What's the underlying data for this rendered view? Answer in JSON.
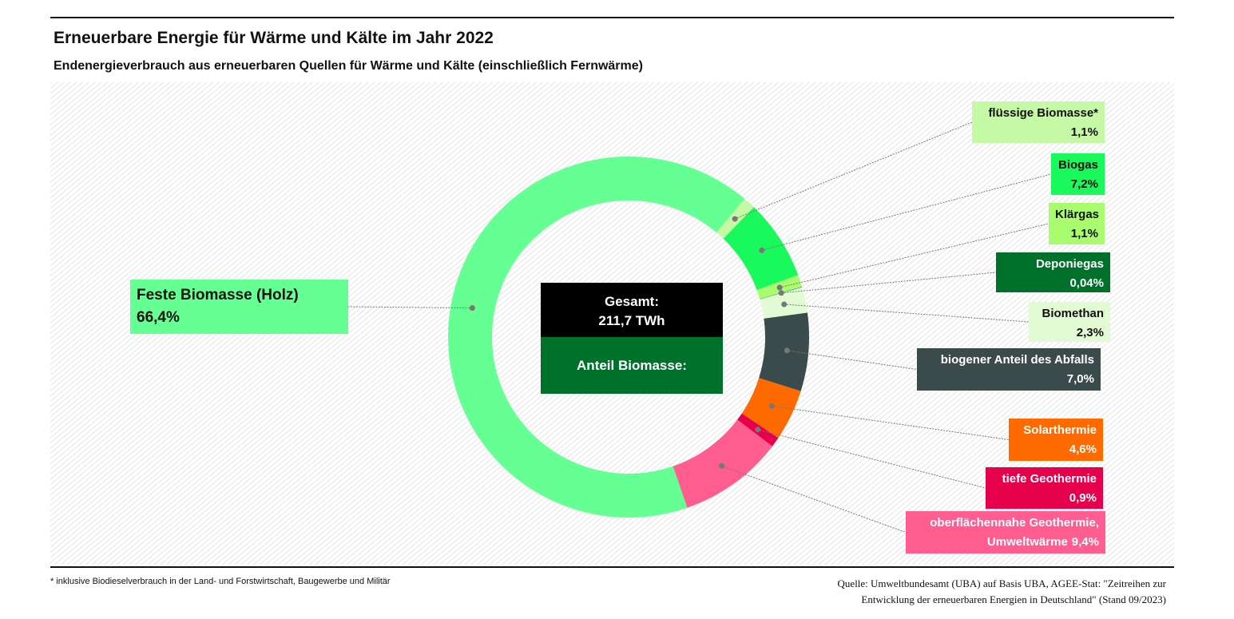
{
  "chart_data": {
    "type": "donut",
    "title": "Erneuerbare Energie für Wärme und Kälte im Jahr 2022",
    "subtitle": "Endenergieverbrauch aus erneuerbaren Quellen für Wärme und Kälte (einschließlich Fernwärme)",
    "categories": [
      "flüssige Biomasse*",
      "Biogas",
      "Klärgas",
      "Deponiegas",
      "Biomethan",
      "biogener Anteil des Abfalls",
      "Solarthermie",
      "tiefe Geothermie",
      "oberflächennahe Geothermie, Umweltwärme",
      "Feste Biomasse (Holz)"
    ],
    "values": [
      1.1,
      7.2,
      1.1,
      0.04,
      2.3,
      7.0,
      4.6,
      0.9,
      9.4,
      66.4
    ],
    "value_labels": [
      "1,1%",
      "7,2%",
      "1,1%",
      "0,04%",
      "2,3%",
      "7,0%",
      "4,6%",
      "0,9%",
      "9,4%",
      "66,4%"
    ],
    "colors": [
      "#c6f9a5",
      "#19f95c",
      "#a8fc6e",
      "#00712a",
      "#e2fbd4",
      "#3b4a4a",
      "#ff6a00",
      "#e6004c",
      "#ff5c90",
      "#66ff94"
    ],
    "center_labels": [
      "Gesamt:",
      "211,7 TWh",
      "Anteil Biomasse:"
    ],
    "footnote": "*  inklusive Biodieselverbrauch in der Land- und Forstwirtschaft, Baugewerbe und Militär",
    "source": [
      "Quelle: Umweltbundesamt (UBA) auf Basis UBA, AGEE-Stat: \"Zeitreihen zur",
      "Entwicklung der erneuerbaren Energien in Deutschland\" (Stand 09/2023)"
    ]
  }
}
